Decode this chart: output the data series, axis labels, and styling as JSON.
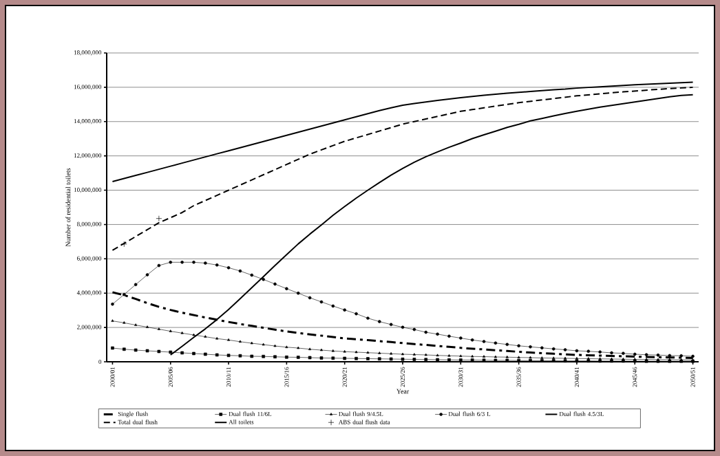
{
  "chart_data": {
    "type": "line",
    "xlabel": "Year",
    "ylabel": "Number of residential toilets",
    "categories": [
      "2000/01",
      null,
      null,
      null,
      null,
      "2005/06",
      null,
      null,
      null,
      null,
      "2010/11",
      null,
      null,
      null,
      null,
      "2015/16",
      null,
      null,
      null,
      null,
      "2020/21",
      null,
      null,
      null,
      null,
      "2025/26",
      null,
      null,
      null,
      null,
      "2030/31",
      null,
      null,
      null,
      null,
      "2035/36",
      null,
      null,
      null,
      null,
      "2040/41",
      null,
      null,
      null,
      null,
      "2045/46",
      null,
      null,
      null,
      null,
      "2050/51"
    ],
    "ylim": [
      0,
      18000000
    ],
    "yticks": [
      0,
      {
        "value": 2000000,
        "label": "2,000,000"
      },
      {
        "value": 4000000,
        "label": "4,000,000"
      },
      {
        "value": 6000000,
        "label": "6,000,000"
      },
      {
        "value": 8000000,
        "label": "8,000,000"
      },
      {
        "value": 10000000,
        "label": "10,000,000"
      },
      {
        "value": 12000000,
        "label": "12,000,000"
      },
      {
        "value": 14000000,
        "label": "14,000,000"
      },
      {
        "value": 16000000,
        "label": "16,000,000"
      },
      {
        "value": 18000000,
        "label": "18,000,000"
      }
    ],
    "grid": "y",
    "legend": "bottom",
    "series": [
      {
        "name": "Single flush",
        "color": "#000000",
        "line_style": "dashdot",
        "marker": "none",
        "values": [
          4050000,
          3880000,
          3660000,
          3420000,
          3200000,
          3020000,
          2860000,
          2720000,
          2580000,
          2450000,
          2320000,
          2200000,
          2090000,
          1980000,
          1870000,
          1770000,
          1680000,
          1600000,
          1520000,
          1440000,
          1360000,
          1310000,
          1260000,
          1200000,
          1150000,
          1090000,
          1030000,
          980000,
          920000,
          870000,
          810000,
          760000,
          720000,
          670000,
          630000,
          580000,
          540000,
          500000,
          470000,
          430000,
          400000,
          380000,
          360000,
          340000,
          320000,
          300000,
          280000,
          270000,
          250000,
          240000,
          220000
        ]
      },
      {
        "name": "Dual flush 11/6L",
        "color": "#000000",
        "line_style": "solid",
        "marker": "square",
        "values": [
          800000,
          730000,
          680000,
          640000,
          600000,
          560000,
          520000,
          480000,
          440000,
          400000,
          370000,
          350000,
          320000,
          310000,
          290000,
          270000,
          260000,
          240000,
          220000,
          210000,
          200000,
          190000,
          180000,
          170000,
          160000,
          150000,
          140000,
          130000,
          120000,
          110000,
          100000,
          100000,
          90000,
          80000,
          80000,
          70000,
          70000,
          60000,
          60000,
          50000,
          50000,
          50000,
          40000,
          40000,
          40000,
          40000,
          30000,
          30000,
          30000,
          30000,
          30000
        ]
      },
      {
        "name": "Dual flush 9/4.5L",
        "color": "#000000",
        "line_style": "solid",
        "marker": "triangle",
        "values": [
          2380000,
          2270000,
          2140000,
          2020000,
          1900000,
          1780000,
          1670000,
          1560000,
          1460000,
          1350000,
          1270000,
          1170000,
          1080000,
          1000000,
          920000,
          850000,
          800000,
          730000,
          680000,
          630000,
          590000,
          560000,
          530000,
          500000,
          470000,
          440000,
          420000,
          400000,
          370000,
          350000,
          330000,
          310000,
          300000,
          280000,
          270000,
          250000,
          240000,
          220000,
          210000,
          200000,
          190000,
          180000,
          170000,
          160000,
          150000,
          140000,
          130000,
          120000,
          120000,
          110000,
          100000
        ]
      },
      {
        "name": "Dual flush 6/3 L",
        "color": "#000000",
        "line_style": "solid",
        "marker": "circle",
        "values": [
          3360000,
          3920000,
          4500000,
          5070000,
          5610000,
          5800000,
          5800000,
          5800000,
          5750000,
          5640000,
          5480000,
          5290000,
          5050000,
          4800000,
          4530000,
          4260000,
          4000000,
          3730000,
          3490000,
          3250000,
          3020000,
          2800000,
          2540000,
          2340000,
          2170000,
          2010000,
          1880000,
          1720000,
          1610000,
          1490000,
          1380000,
          1270000,
          1180000,
          1090000,
          1010000,
          930000,
          870000,
          810000,
          750000,
          700000,
          640000,
          610000,
          570000,
          520000,
          490000,
          440000,
          410000,
          390000,
          360000,
          350000,
          320000
        ]
      },
      {
        "name": "Dual flush 4.5/3L",
        "color": "#000000",
        "line_style": "solid",
        "marker": "none",
        "values": [
          null,
          null,
          null,
          null,
          null,
          400000,
          900000,
          1420000,
          1920000,
          2460000,
          3050000,
          3680000,
          4320000,
          4960000,
          5610000,
          6240000,
          6870000,
          7440000,
          7980000,
          8540000,
          9050000,
          9540000,
          10000000,
          10450000,
          10880000,
          11270000,
          11630000,
          11950000,
          12230000,
          12500000,
          12750000,
          13010000,
          13230000,
          13440000,
          13660000,
          13840000,
          14040000,
          14180000,
          14330000,
          14470000,
          14600000,
          14720000,
          14840000,
          14940000,
          15040000,
          15140000,
          15240000,
          15340000,
          15440000,
          15520000,
          15560000
        ]
      },
      {
        "name": "Total dual flush",
        "color": "#000000",
        "line_style": "dashed",
        "marker": "none",
        "values": [
          6500000,
          6900000,
          7300000,
          7700000,
          8100000,
          8400000,
          8700000,
          9100000,
          9400000,
          9700000,
          10000000,
          10300000,
          10600000,
          10900000,
          11200000,
          11500000,
          11800000,
          12100000,
          12350000,
          12600000,
          12850000,
          13050000,
          13250000,
          13450000,
          13650000,
          13850000,
          14000000,
          14150000,
          14300000,
          14450000,
          14600000,
          14700000,
          14800000,
          14900000,
          15000000,
          15100000,
          15180000,
          15260000,
          15340000,
          15420000,
          15500000,
          15560000,
          15620000,
          15680000,
          15730000,
          15780000,
          15830000,
          15880000,
          15920000,
          15960000,
          16000000
        ]
      },
      {
        "name": "All toilets",
        "color": "#000000",
        "line_style": "solid",
        "marker": "none",
        "values": [
          10500000,
          10680000,
          10860000,
          11040000,
          11220000,
          11400000,
          11580000,
          11760000,
          11940000,
          12120000,
          12300000,
          12480000,
          12660000,
          12840000,
          13020000,
          13200000,
          13380000,
          13560000,
          13740000,
          13920000,
          14100000,
          14280000,
          14460000,
          14640000,
          14800000,
          14950000,
          15050000,
          15140000,
          15230000,
          15310000,
          15390000,
          15460000,
          15530000,
          15590000,
          15650000,
          15700000,
          15750000,
          15800000,
          15850000,
          15890000,
          15950000,
          15990000,
          16030000,
          16070000,
          16110000,
          16150000,
          16180000,
          16210000,
          16240000,
          16270000,
          16300000
        ]
      },
      {
        "name": "ABS dual flush data",
        "type": "scatter",
        "color": "#000000",
        "marker": "cross",
        "values": [
          null,
          6860000,
          null,
          null,
          8350000,
          null,
          null,
          null,
          null,
          null,
          null,
          null,
          null,
          null,
          null,
          null,
          null,
          null,
          null,
          null,
          null,
          null,
          null,
          null,
          null,
          null,
          null,
          null,
          null,
          null,
          null,
          null,
          null,
          null,
          null,
          null,
          null,
          null,
          null,
          null,
          null,
          null,
          null,
          null,
          null,
          null,
          null,
          null,
          null,
          null,
          null
        ]
      }
    ]
  }
}
